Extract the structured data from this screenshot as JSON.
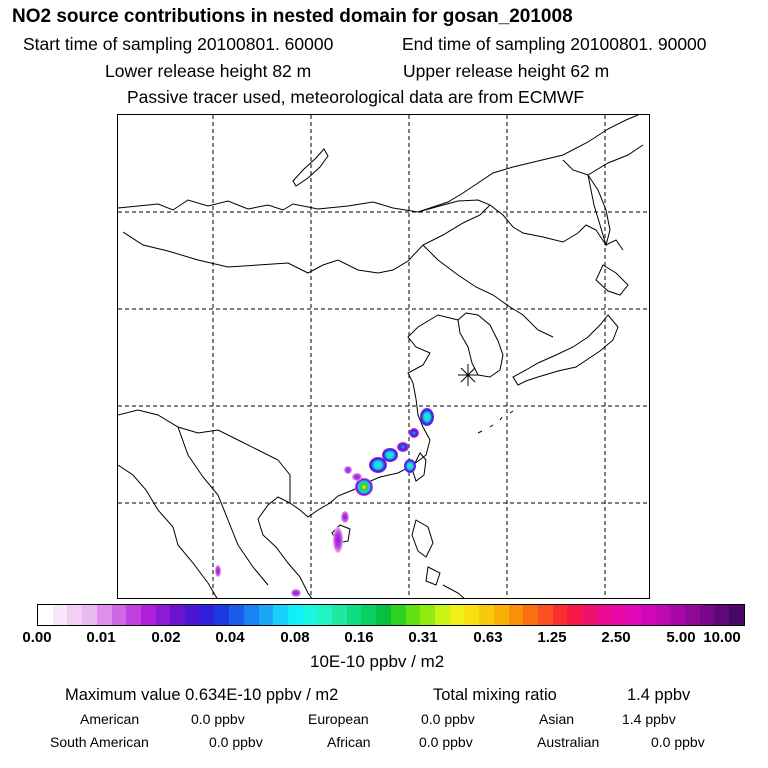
{
  "header": {
    "title": "NO2 source contributions in nested domain for gosan_201008",
    "start_time": "Start time of sampling 20100801. 60000",
    "end_time": "End time of sampling 20100801. 90000",
    "lower_release": "Lower release height   82 m",
    "upper_release": "Upper release height   62 m",
    "tracer_note": "Passive tracer used, meteorological data are from ECMWF"
  },
  "map": {
    "region": "East Asia nested domain",
    "receptor": "gosan"
  },
  "colorbar": {
    "tick_labels": [
      "0.00",
      "0.01",
      "0.02",
      "0.04",
      "0.08",
      "0.16",
      "0.31",
      "0.63",
      "1.25",
      "2.50",
      "5.00",
      "10.00"
    ],
    "unit_label": "10E-10 ppbv / m2",
    "colors": [
      "#ffffff",
      "#f8e8fa",
      "#f0d0f5",
      "#e8b8f0",
      "#dc90ea",
      "#cf68e5",
      "#c040e0",
      "#b020dc",
      "#8c1ad6",
      "#6a14cf",
      "#4a16d6",
      "#3020dc",
      "#1c3ae4",
      "#1a5cec",
      "#1a82f2",
      "#1aa8f6",
      "#18d0f8",
      "#10f0f8",
      "#18f8e0",
      "#20f4c0",
      "#20e8a0",
      "#10dc80",
      "#08d060",
      "#08c040",
      "#30d020",
      "#60e010",
      "#90ec10",
      "#c8f414",
      "#f0f018",
      "#f8e010",
      "#f8c80c",
      "#f8b008",
      "#f89008",
      "#f87010",
      "#f85020",
      "#f83030",
      "#f81848",
      "#f01070",
      "#ec0890",
      "#e808a8",
      "#e008b8",
      "#d008b8",
      "#c008b0",
      "#a808a8",
      "#900898",
      "#780888",
      "#600878",
      "#480868"
    ]
  },
  "stats": {
    "max_value": "Maximum value  0.634E-10 ppbv / m2",
    "total_label": "Total mixing ratio",
    "total_value": "1.4 ppbv",
    "regions": [
      {
        "name": "American",
        "value": "0.0 ppbv"
      },
      {
        "name": "European",
        "value": "0.0 ppbv"
      },
      {
        "name": "Asian",
        "value": "1.4 ppbv"
      },
      {
        "name": "South American",
        "value": "0.0 ppbv"
      },
      {
        "name": "African",
        "value": "0.0 ppbv"
      },
      {
        "name": "Australian",
        "value": "0.0 ppbv"
      }
    ]
  }
}
